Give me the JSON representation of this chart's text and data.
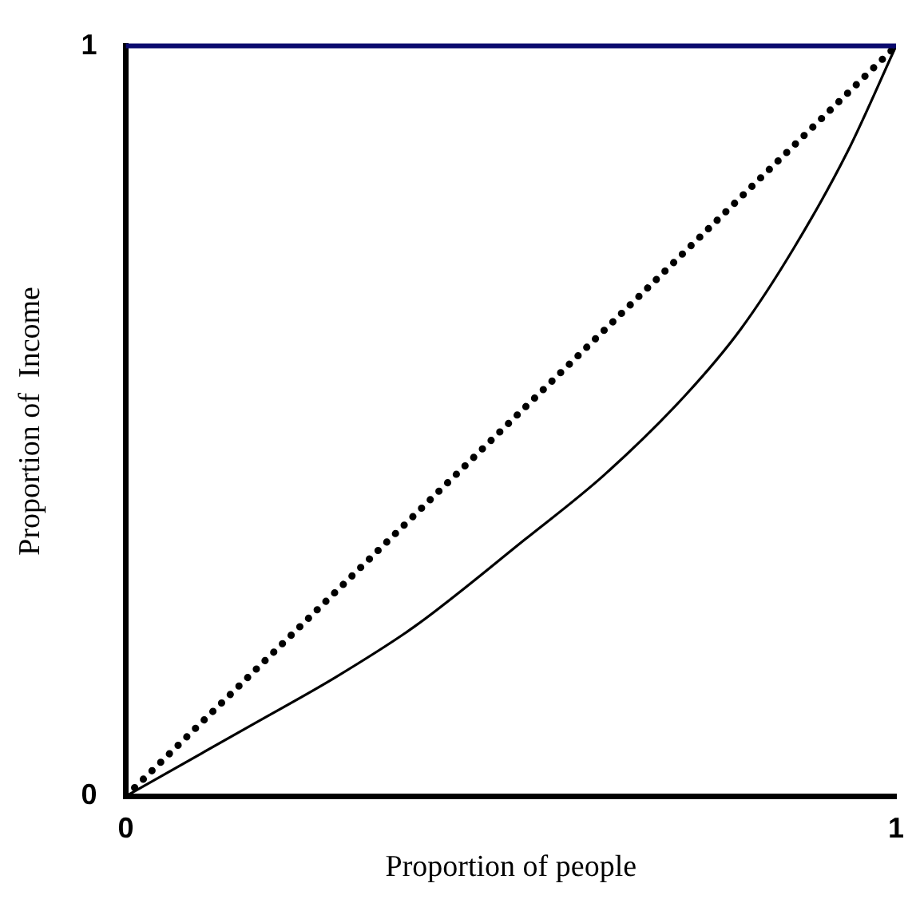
{
  "chart_data": {
    "type": "line",
    "xlabel": "Proportion of people",
    "ylabel": "Proportion of  Income",
    "xlim": [
      0,
      1
    ],
    "ylim": [
      0,
      1
    ],
    "xticks": [
      0,
      1
    ],
    "yticks": [
      0,
      1
    ],
    "grid": false,
    "legend": false,
    "marker": "none",
    "series": [
      {
        "type": "line",
        "color": "#000000",
        "line_style": "dotted",
        "x": [
          0,
          1
        ],
        "values": [
          0,
          1
        ]
      },
      {
        "type": "line",
        "color": "#000000",
        "line_style": "solid",
        "x": [
          0,
          0.167,
          0.273,
          0.376,
          0.518,
          0.622,
          0.727,
          0.798,
          0.867,
          0.937,
          1
        ],
        "values": [
          0,
          0.097,
          0.159,
          0.227,
          0.342,
          0.429,
          0.535,
          0.622,
          0.73,
          0.859,
          1
        ]
      }
    ]
  }
}
